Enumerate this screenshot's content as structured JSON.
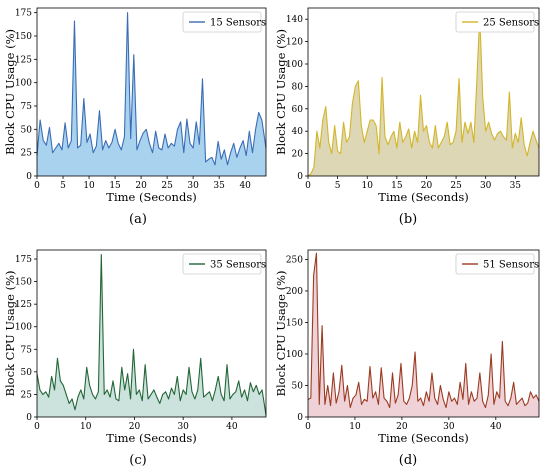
{
  "figure": {
    "captions": [
      "(a)",
      "(b)",
      "(c)",
      "(d)"
    ]
  },
  "chart_data": [
    {
      "type": "area",
      "series": [
        {
          "name": "15 Sensors",
          "color": "#3a6db5",
          "fill": "#a9d2ee",
          "x": [
            0,
            0.6,
            1.2,
            1.8,
            2.4,
            3,
            3.6,
            4.2,
            4.8,
            5.4,
            6,
            6.6,
            7.2,
            7.8,
            8.4,
            9,
            9.6,
            10.2,
            10.8,
            11.4,
            12,
            12.6,
            13.2,
            13.8,
            14.4,
            15,
            15.6,
            16.2,
            16.8,
            17.4,
            18,
            18.6,
            19.2,
            19.8,
            20.4,
            21,
            21.6,
            22.2,
            22.8,
            23.4,
            24,
            24.6,
            25.2,
            25.8,
            26.4,
            27,
            27.6,
            28.2,
            28.8,
            29.4,
            30,
            30.6,
            31.2,
            31.8,
            32.4,
            33,
            33.6,
            34.2,
            34.8,
            35.4,
            36,
            36.6,
            37.2,
            37.8,
            38.4,
            39,
            39.6,
            40.2,
            40.8,
            41.4,
            42,
            42.6,
            43.2,
            44
          ],
          "values": [
            22,
            60,
            38,
            33,
            52,
            25,
            30,
            35,
            28,
            57,
            30,
            38,
            166,
            30,
            33,
            83,
            36,
            45,
            25,
            32,
            70,
            28,
            38,
            30,
            36,
            50,
            35,
            28,
            42,
            175,
            40,
            130,
            28,
            38,
            46,
            50,
            35,
            25,
            48,
            30,
            28,
            45,
            30,
            35,
            32,
            50,
            58,
            25,
            61,
            35,
            30,
            58,
            34,
            104,
            15,
            18,
            20,
            12,
            37,
            18,
            28,
            12,
            25,
            35,
            20,
            30,
            38,
            22,
            48,
            25,
            50,
            68,
            60,
            30
          ]
        }
      ],
      "xlabel": "Time (Seconds)",
      "ylabel": "Block CPU Usage (%)",
      "xlim": [
        0,
        44
      ],
      "ylim": [
        0,
        180
      ],
      "xticks": [
        0,
        5,
        10,
        15,
        20,
        25,
        30,
        35,
        40
      ],
      "yticks": [
        0,
        25,
        50,
        75,
        100,
        125,
        150,
        175
      ],
      "legend": "top-right",
      "grid": false
    },
    {
      "type": "area",
      "series": [
        {
          "name": "25 Sensors",
          "color": "#d4b527",
          "fill": "#ddd7b5",
          "x": [
            0,
            0.5,
            1,
            1.5,
            2,
            2.5,
            3,
            3.5,
            4,
            4.5,
            5,
            5.5,
            6,
            6.5,
            7,
            7.5,
            8,
            8.5,
            9,
            9.5,
            10,
            10.5,
            11,
            11.5,
            12,
            12.5,
            13,
            13.5,
            14,
            14.5,
            15,
            15.5,
            16,
            16.5,
            17,
            17.5,
            18,
            18.5,
            19,
            19.5,
            20,
            20.5,
            21,
            21.5,
            22,
            22.5,
            23,
            23.5,
            24,
            24.5,
            25,
            25.5,
            26,
            26.5,
            27,
            27.5,
            28,
            28.5,
            29,
            29.5,
            30,
            30.5,
            31,
            31.5,
            32,
            32.5,
            33,
            33.5,
            34,
            34.5,
            35,
            35.5,
            36,
            36.5,
            37,
            37.5,
            38,
            38.5,
            39
          ],
          "values": [
            0,
            2,
            8,
            40,
            25,
            50,
            62,
            30,
            20,
            45,
            22,
            20,
            48,
            30,
            35,
            65,
            80,
            85,
            45,
            30,
            40,
            50,
            50,
            45,
            20,
            88,
            35,
            28,
            35,
            40,
            25,
            48,
            30,
            35,
            42,
            25,
            40,
            30,
            72,
            40,
            45,
            30,
            25,
            45,
            25,
            30,
            35,
            48,
            28,
            30,
            40,
            87,
            30,
            48,
            38,
            48,
            30,
            85,
            143,
            70,
            40,
            48,
            38,
            32,
            38,
            40,
            35,
            32,
            75,
            25,
            38,
            30,
            52,
            28,
            18,
            30,
            40,
            32,
            25
          ]
        }
      ],
      "xlabel": "Time (Seconds)",
      "ylabel": "Block CPU Usage (%)",
      "xlim": [
        0,
        39
      ],
      "ylim": [
        0,
        150
      ],
      "xticks": [
        0,
        5,
        10,
        15,
        20,
        25,
        30,
        35
      ],
      "yticks": [
        0,
        20,
        40,
        60,
        80,
        100,
        120,
        140
      ],
      "legend": "top-right",
      "grid": false
    },
    {
      "type": "area",
      "series": [
        {
          "name": "35 Sensors",
          "color": "#236637",
          "fill": "#cce2dc",
          "x": [
            0,
            0.6,
            1.2,
            1.8,
            2.4,
            3,
            3.6,
            4.2,
            4.8,
            5.4,
            6,
            6.6,
            7.2,
            7.8,
            8.4,
            9,
            9.6,
            10.2,
            10.8,
            11.4,
            12,
            12.6,
            13.2,
            13.8,
            14.4,
            15,
            15.6,
            16.2,
            16.8,
            17.4,
            18,
            18.6,
            19.2,
            19.8,
            20.4,
            21,
            21.6,
            22.2,
            22.8,
            23.4,
            24,
            24.6,
            25.2,
            25.8,
            26.4,
            27,
            27.6,
            28.2,
            28.8,
            29.4,
            30,
            30.6,
            31.2,
            31.8,
            32.4,
            33,
            33.6,
            34.2,
            34.8,
            35.4,
            36,
            36.6,
            37.2,
            37.8,
            38.4,
            39,
            39.6,
            40.2,
            40.8,
            41.4,
            42,
            42.6,
            43.2,
            43.8,
            44.4,
            45,
            45.6,
            46.2,
            47
          ],
          "values": [
            48,
            30,
            25,
            28,
            22,
            45,
            30,
            65,
            40,
            35,
            25,
            15,
            20,
            8,
            22,
            30,
            20,
            55,
            35,
            25,
            20,
            28,
            180,
            25,
            30,
            22,
            40,
            20,
            18,
            55,
            30,
            48,
            20,
            75,
            25,
            30,
            18,
            58,
            20,
            25,
            30,
            22,
            15,
            25,
            28,
            20,
            32,
            25,
            45,
            18,
            30,
            25,
            55,
            28,
            20,
            30,
            65,
            22,
            25,
            28,
            18,
            30,
            45,
            25,
            18,
            58,
            20,
            25,
            28,
            40,
            22,
            30,
            18,
            38,
            28,
            35,
            25,
            30,
            2
          ]
        }
      ],
      "xlabel": "Time (Seconds)",
      "ylabel": "Block CPU Usage (%)",
      "xlim": [
        0,
        47
      ],
      "ylim": [
        0,
        185
      ],
      "xticks": [
        0,
        10,
        20,
        30,
        40
      ],
      "yticks": [
        0,
        25,
        50,
        75,
        100,
        125,
        150,
        175
      ],
      "legend": "top-right",
      "grid": false
    },
    {
      "type": "area",
      "series": [
        {
          "name": "51 Sensors",
          "color": "#9c3b22",
          "fill": "#eed2d7",
          "x": [
            0,
            0.6,
            1.2,
            1.8,
            2.4,
            3,
            3.6,
            4.2,
            4.8,
            5.4,
            6,
            6.6,
            7.2,
            7.8,
            8.4,
            9,
            9.6,
            10.2,
            10.8,
            11.4,
            12,
            12.6,
            13.2,
            13.8,
            14.4,
            15,
            15.6,
            16.2,
            16.8,
            17.4,
            18,
            18.6,
            19.2,
            19.8,
            20.4,
            21,
            21.6,
            22.2,
            22.8,
            23.4,
            24,
            24.6,
            25.2,
            25.8,
            26.4,
            27,
            27.6,
            28.2,
            28.8,
            29.4,
            30,
            30.6,
            31.2,
            31.8,
            32.4,
            33,
            33.6,
            34.2,
            34.8,
            35.4,
            36,
            36.6,
            37.2,
            37.8,
            38.4,
            39,
            39.6,
            40.2,
            40.8,
            41.4,
            42,
            42.6,
            43.2,
            43.8,
            44.4,
            45,
            45.6,
            46.2,
            46.8,
            47.4,
            48,
            48.6,
            49.2
          ],
          "values": [
            28,
            30,
            225,
            260,
            20,
            145,
            20,
            50,
            18,
            70,
            22,
            40,
            82,
            25,
            50,
            15,
            30,
            35,
            55,
            20,
            28,
            25,
            80,
            30,
            40,
            20,
            78,
            30,
            25,
            15,
            70,
            22,
            35,
            85,
            25,
            20,
            30,
            50,
            103,
            25,
            30,
            18,
            40,
            25,
            70,
            30,
            20,
            50,
            28,
            15,
            40,
            25,
            30,
            20,
            55,
            28,
            85,
            20,
            40,
            25,
            30,
            70,
            25,
            15,
            35,
            100,
            20,
            40,
            30,
            120,
            25,
            18,
            30,
            55,
            20,
            25,
            30,
            18,
            22,
            40,
            30,
            35,
            25
          ]
        }
      ],
      "xlabel": "Time (Seconds)",
      "ylabel": "Block CPU Usage (%)",
      "xlim": [
        0,
        49.2
      ],
      "ylim": [
        0,
        265
      ],
      "xticks": [
        0,
        10,
        20,
        30,
        40
      ],
      "yticks": [
        0,
        50,
        100,
        150,
        200,
        250
      ],
      "legend": "top-right",
      "grid": false
    }
  ]
}
